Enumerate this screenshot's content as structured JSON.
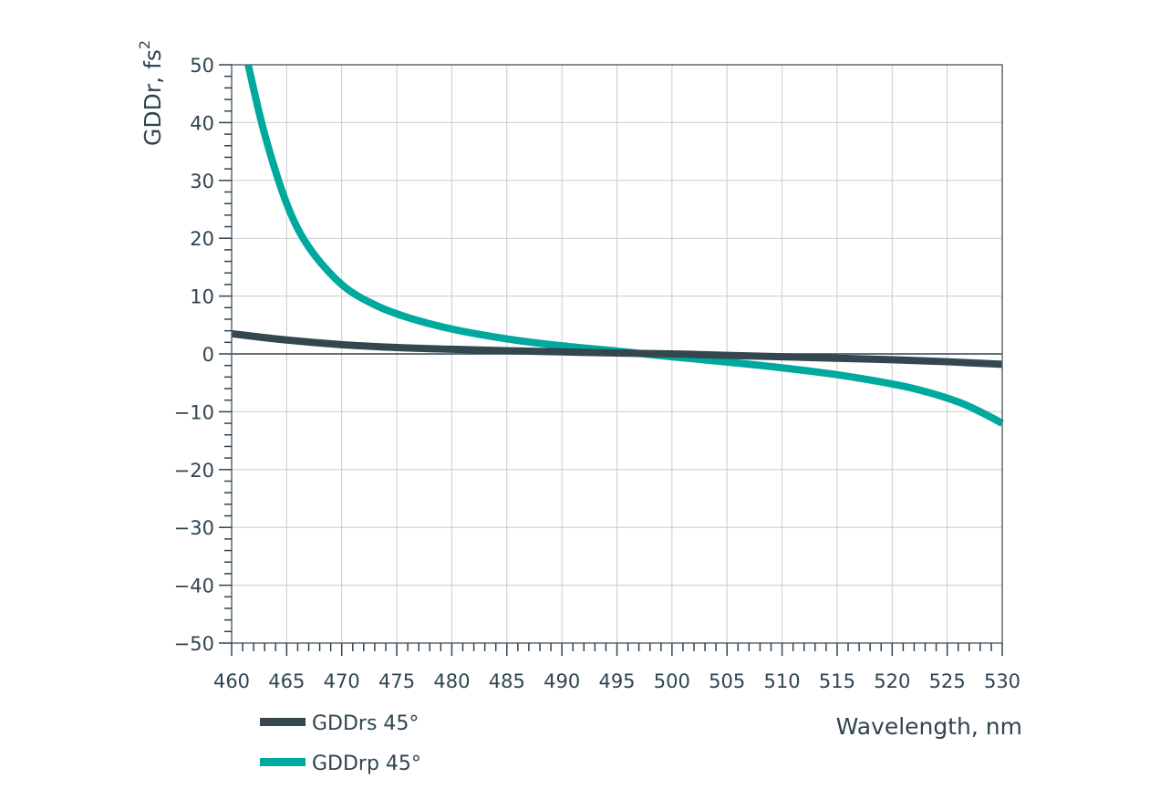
{
  "chart_data": {
    "type": "line",
    "xlabel": "Wavelength, nm",
    "ylabel": "GDDr, fs",
    "ylabel_superscript": "2",
    "xlim": [
      460,
      530
    ],
    "ylim": [
      -50,
      50
    ],
    "x_ticks": [
      460,
      465,
      470,
      475,
      480,
      485,
      490,
      495,
      500,
      505,
      510,
      515,
      520,
      525,
      530
    ],
    "y_ticks": [
      50,
      40,
      30,
      20,
      10,
      0,
      -10,
      -20,
      -30,
      -40,
      -50
    ],
    "x_tick_labels": [
      "460",
      "465",
      "470",
      "475",
      "480",
      "485",
      "490",
      "495",
      "500",
      "505",
      "510",
      "515",
      "520",
      "525",
      "530"
    ],
    "y_tick_labels": [
      "50",
      "40",
      "30",
      "20",
      "10",
      "0",
      "−10",
      "−20",
      "−30",
      "−40",
      "−50"
    ],
    "grid": true,
    "legend_position": "bottom-left",
    "series": [
      {
        "name": "GDDrs 45°",
        "color": "#34474f",
        "x": [
          460,
          465,
          470,
          475,
          480,
          485,
          490,
          495,
          500,
          505,
          510,
          515,
          520,
          525,
          530
        ],
        "y": [
          3.5,
          2.4,
          1.6,
          1.1,
          0.8,
          0.55,
          0.35,
          0.15,
          0.0,
          -0.25,
          -0.5,
          -0.75,
          -1.0,
          -1.35,
          -1.8
        ]
      },
      {
        "name": "GDDrp 45°",
        "color": "#00a99d",
        "x": [
          461.5,
          463,
          465,
          467,
          470,
          473,
          476,
          480,
          485,
          490,
          495,
          500,
          505,
          510,
          515,
          520,
          523,
          526,
          528,
          530
        ],
        "y": [
          50,
          38,
          26,
          18.5,
          12,
          8.5,
          6.3,
          4.3,
          2.6,
          1.4,
          0.5,
          -0.5,
          -1.4,
          -2.4,
          -3.6,
          -5.2,
          -6.5,
          -8.3,
          -10,
          -12
        ]
      }
    ]
  }
}
